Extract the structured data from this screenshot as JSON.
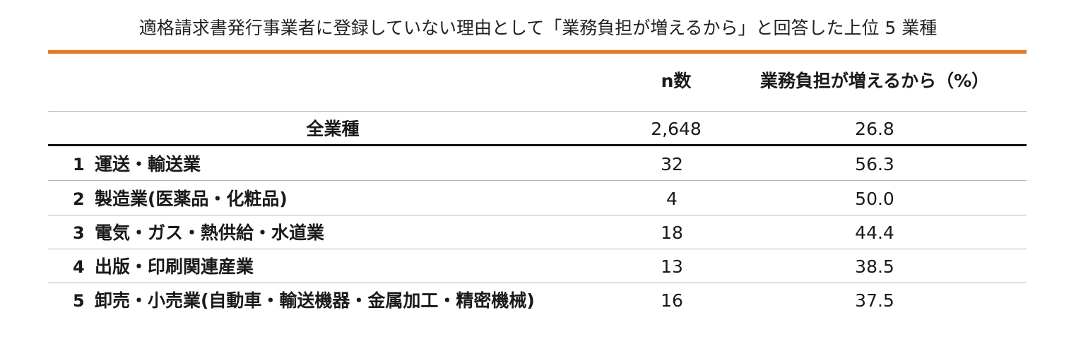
{
  "title": "適格請求書発行事業者に登録していない理由として「業務負担が増えるから」と回答した上位 5 業種",
  "accent_color": "#e87722",
  "table": {
    "columns": {
      "n_label": "n数",
      "pct_label": "業務負担が増えるから（%）"
    },
    "total": {
      "label": "全業種",
      "n": "2,648",
      "pct": "26.8"
    },
    "rows": [
      {
        "rank": "1",
        "industry": "運送・輸送業",
        "n": "32",
        "pct": "56.3"
      },
      {
        "rank": "2",
        "industry": "製造業(医薬品・化粧品)",
        "n": "4",
        "pct": "50.0"
      },
      {
        "rank": "3",
        "industry": "電気・ガス・熱供給・水道業",
        "n": "18",
        "pct": "44.4"
      },
      {
        "rank": "4",
        "industry": "出版・印刷関連産業",
        "n": "13",
        "pct": "38.5"
      },
      {
        "rank": "5",
        "industry": "卸売・小売業(自動車・輸送機器・金属加工・精密機械)",
        "n": "16",
        "pct": "37.5"
      }
    ]
  }
}
